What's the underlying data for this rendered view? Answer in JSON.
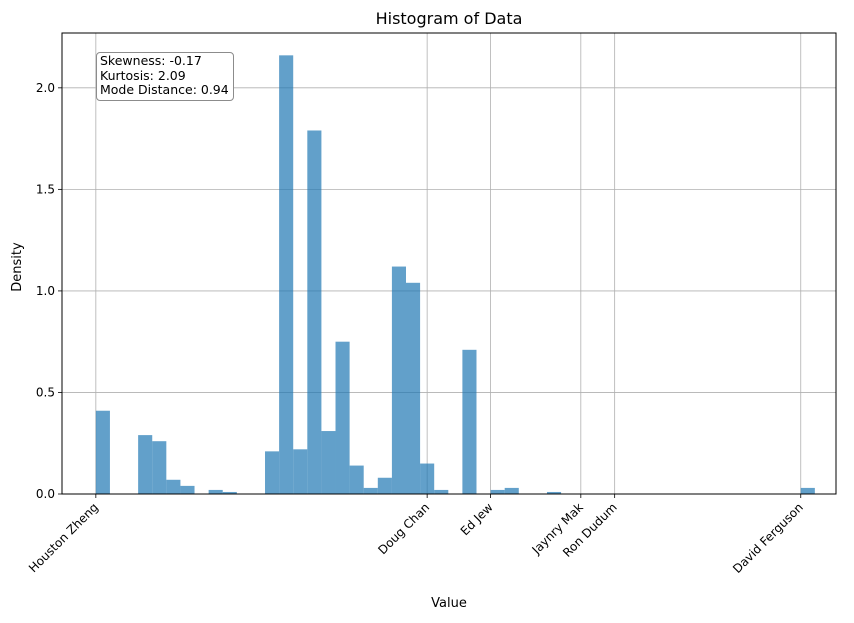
{
  "chart_data": {
    "type": "bar",
    "title": "Histogram of Data",
    "xlabel": "Value",
    "ylabel": "Density",
    "ylim": [
      0,
      2.27
    ],
    "grid": true,
    "bar_color": "#1f77b4",
    "bar_alpha": 0.7,
    "yticks": [
      0.0,
      0.5,
      1.0,
      1.5,
      2.0
    ],
    "ytick_labels": [
      "0.0",
      "0.5",
      "1.0",
      "1.5",
      "2.0"
    ],
    "xticks": [
      {
        "label": "Houston Zheng",
        "pos": 0.0
      },
      {
        "label": "Doug Chan",
        "pos": 23.5
      },
      {
        "label": "Ed Jew",
        "pos": 28.0
      },
      {
        "label": "Jaynry Mak",
        "pos": 34.4
      },
      {
        "label": "Ron Dudum",
        "pos": 36.8
      },
      {
        "label": "David Ferguson",
        "pos": 50.0
      }
    ],
    "bins": {
      "start": 0.0,
      "width": 1.0,
      "values": [
        0.41,
        0.0,
        0.0,
        0.29,
        0.26,
        0.07,
        0.04,
        0.0,
        0.02,
        0.01,
        0.0,
        0.0,
        0.21,
        2.16,
        0.22,
        1.79,
        0.31,
        0.75,
        0.14,
        0.03,
        0.08,
        1.12,
        1.04,
        0.15,
        0.02,
        0.0,
        0.71,
        0.0,
        0.02,
        0.03,
        0.0,
        0.0,
        0.01,
        0.0,
        0.0,
        0.0,
        0.0,
        0.0,
        0.0,
        0.0,
        0.0,
        0.0,
        0.0,
        0.0,
        0.0,
        0.0,
        0.0,
        0.0,
        0.0,
        0.0,
        0.03
      ]
    },
    "annotation": {
      "lines": [
        "Skewness: -0.17",
        "Kurtosis: 2.09",
        "Mode Distance: 0.94"
      ],
      "placement": "top-left"
    }
  }
}
